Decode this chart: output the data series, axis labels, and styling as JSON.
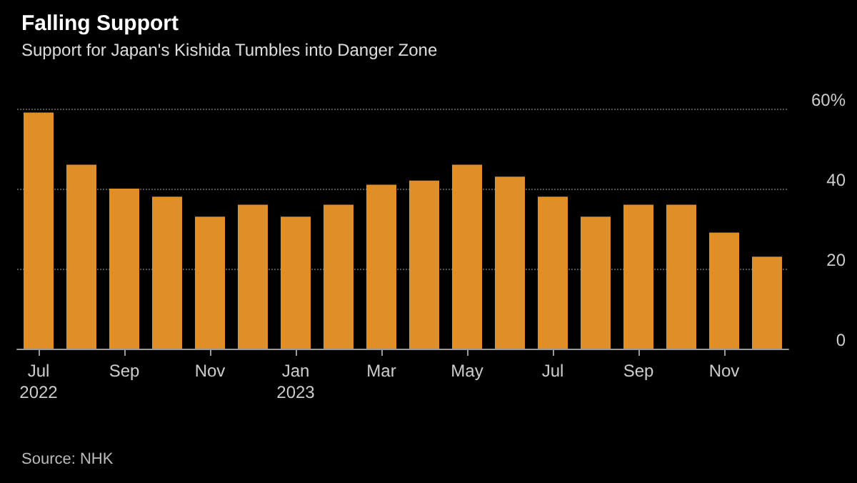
{
  "chart_data": {
    "type": "bar",
    "title": "Falling Support",
    "subtitle": "Support for Japan's Kishida Tumbles into Danger Zone",
    "categories": [
      "Jul\n2022",
      null,
      "Sep",
      null,
      "Nov",
      null,
      "Jan\n2023",
      null,
      "Mar",
      null,
      "May",
      null,
      "Jul",
      null,
      "Sep",
      null,
      "Nov",
      null
    ],
    "values": [
      59,
      46,
      40,
      38,
      33,
      36,
      33,
      36,
      41,
      42,
      46,
      43,
      38,
      33,
      36,
      36,
      29,
      23
    ],
    "color": "#e08e28",
    "ylim": [
      0,
      60
    ],
    "yticks": [
      0,
      20,
      40,
      {
        "value": 60,
        "label": "60%"
      }
    ],
    "grid": "y",
    "annotations": [
      "Source: NHK"
    ]
  }
}
